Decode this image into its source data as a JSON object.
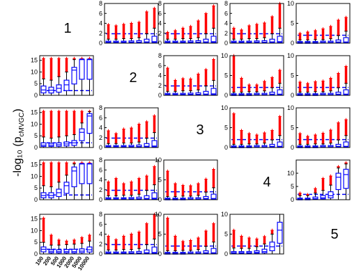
{
  "ylabel": "-log₁₀ (p",
  "ylabel_sub": "cMVGC",
  "ylabel_close": ")",
  "xtick_labels": [
    "100",
    "200",
    "500",
    "1000",
    "2000",
    "5000",
    "10000"
  ],
  "diag_labels": [
    "1",
    "2",
    "3",
    "4",
    "5"
  ],
  "colors": {
    "box": "#0000ff",
    "outlier": "#ff0000",
    "median": "#0000ff",
    "whisker": "#000000",
    "reference": "#0000ff",
    "axis": "#000000"
  },
  "chart_data": {
    "type": "box",
    "layout": "5x5 matrix of box-plot panels; diagonal holds variable numbers 1–5",
    "x_categories": [
      "100",
      "200",
      "500",
      "1000",
      "2000",
      "5000",
      "10000"
    ],
    "panels": [
      {
        "row": 1,
        "col": 2,
        "ylim": [
          0,
          8
        ],
        "yticks": [
          0,
          2,
          4,
          6,
          8
        ],
        "ref": 1.9,
        "medians": [
          0.2,
          0.2,
          0.2,
          0.2,
          0.2,
          0.25,
          0.3
        ],
        "q3": [
          0.4,
          0.4,
          0.4,
          0.45,
          0.5,
          0.8,
          1.4
        ],
        "whisk": [
          0.8,
          0.8,
          0.9,
          0.9,
          1.1,
          1.9,
          3.0
        ],
        "out_max": [
          3.7,
          3.5,
          3.8,
          4.0,
          4.2,
          6.3,
          7.0
        ]
      },
      {
        "row": 1,
        "col": 3,
        "ylim": [
          0,
          8
        ],
        "yticks": [
          0,
          2,
          4,
          6,
          8
        ],
        "ref": 1.9,
        "medians": [
          0.2,
          0.2,
          0.2,
          0.2,
          0.2,
          0.25,
          0.3
        ],
        "q3": [
          0.4,
          0.4,
          0.4,
          0.45,
          0.5,
          0.8,
          1.4
        ],
        "whisk": [
          0.8,
          0.8,
          0.9,
          0.9,
          1.1,
          1.9,
          3.0
        ],
        "out_max": [
          2.2,
          2.5,
          3.0,
          3.4,
          4.5,
          6.0,
          7.5
        ]
      },
      {
        "row": 1,
        "col": 4,
        "ylim": [
          0,
          8
        ],
        "yticks": [
          0,
          2,
          4,
          6,
          8
        ],
        "ref": 1.9,
        "medians": [
          0.2,
          0.2,
          0.2,
          0.2,
          0.2,
          0.25,
          0.3
        ],
        "q3": [
          0.4,
          0.4,
          0.4,
          0.45,
          0.5,
          0.8,
          1.4
        ],
        "whisk": [
          0.8,
          0.8,
          0.9,
          0.9,
          1.1,
          1.9,
          3.0
        ],
        "out_max": [
          3.0,
          2.7,
          3.5,
          3.8,
          4.1,
          5.3,
          8.2
        ]
      },
      {
        "row": 1,
        "col": 5,
        "ylim": [
          0,
          10
        ],
        "yticks": [
          0,
          5,
          10
        ],
        "ref": 2.0,
        "medians": [
          0.2,
          0.2,
          0.2,
          0.2,
          0.2,
          0.3,
          0.3
        ],
        "q3": [
          0.4,
          0.4,
          0.4,
          0.5,
          0.5,
          0.8,
          1.4
        ],
        "whisk": [
          0.8,
          0.8,
          0.9,
          0.9,
          1.1,
          1.9,
          3.0
        ],
        "out_max": [
          2.5,
          2.8,
          3.2,
          3.6,
          4.2,
          5.8,
          6.5
        ]
      },
      {
        "row": 2,
        "col": 1,
        "ylim": [
          0,
          17
        ],
        "yticks": [
          0,
          5,
          10,
          15
        ],
        "ref": 2.0,
        "medians": [
          2.3,
          2.2,
          3.0,
          4.5,
          10.8,
          15.3,
          15.3
        ],
        "q3": [
          4.0,
          3.5,
          4.5,
          6.5,
          12.0,
          15.5,
          15.5
        ],
        "whisk": [
          7.0,
          6.5,
          8.0,
          10.0,
          15.3,
          15.5,
          15.5
        ],
        "out_max": [
          15.8,
          15.8,
          15.8,
          15.8,
          15.8,
          15.8,
          15.8
        ]
      },
      {
        "row": 2,
        "col": 3,
        "ylim": [
          0,
          8
        ],
        "yticks": [
          0,
          2,
          4,
          6,
          8
        ],
        "ref": 1.9,
        "medians": [
          0.2,
          0.2,
          0.2,
          0.2,
          0.2,
          0.25,
          0.3
        ],
        "q3": [
          0.4,
          0.4,
          0.4,
          0.45,
          0.5,
          0.8,
          1.4
        ],
        "whisk": [
          0.8,
          0.8,
          0.9,
          0.9,
          1.1,
          1.9,
          3.0
        ],
        "out_max": [
          5.5,
          3.0,
          3.4,
          3.3,
          4.3,
          5.2,
          7.2
        ]
      },
      {
        "row": 2,
        "col": 4,
        "ylim": [
          0,
          10
        ],
        "yticks": [
          0,
          5,
          10
        ],
        "ref": 2.0,
        "medians": [
          0.2,
          0.2,
          0.2,
          0.2,
          0.2,
          0.3,
          0.3
        ],
        "q3": [
          0.4,
          0.4,
          0.4,
          0.5,
          0.5,
          0.8,
          1.4
        ],
        "whisk": [
          0.8,
          0.8,
          0.9,
          0.9,
          1.1,
          1.9,
          3.0
        ],
        "out_max": [
          10.5,
          4.3,
          2.6,
          2.6,
          3.5,
          4.5,
          6.3
        ]
      },
      {
        "row": 2,
        "col": 5,
        "ylim": [
          0,
          10
        ],
        "yticks": [
          0,
          5,
          10
        ],
        "ref": 2.0,
        "medians": [
          0.2,
          0.2,
          0.2,
          0.2,
          0.2,
          0.3,
          0.3
        ],
        "q3": [
          0.4,
          0.4,
          0.4,
          0.5,
          0.5,
          0.8,
          1.4
        ],
        "whisk": [
          0.8,
          0.8,
          0.9,
          0.9,
          1.1,
          1.9,
          3.0
        ],
        "out_max": [
          3.3,
          3.0,
          3.4,
          3.6,
          4.3,
          5.5,
          7.3
        ]
      },
      {
        "row": 3,
        "col": 1,
        "ylim": [
          0,
          17
        ],
        "yticks": [
          0,
          5,
          10,
          15
        ],
        "ref": 2.0,
        "medians": [
          1.0,
          1.0,
          1.2,
          1.5,
          2.0,
          6.5,
          13.5
        ],
        "q3": [
          2.0,
          1.8,
          2.0,
          2.4,
          3.0,
          8.0,
          14.5
        ],
        "whisk": [
          4.5,
          4.0,
          4.5,
          5.0,
          5.5,
          10.5,
          15.3
        ],
        "out_max": [
          15.5,
          15.5,
          15.5,
          15.5,
          15.5,
          15.5,
          15.5
        ]
      },
      {
        "row": 3,
        "col": 2,
        "ylim": [
          0,
          8
        ],
        "yticks": [
          0,
          2,
          4,
          6,
          8
        ],
        "ref": 1.9,
        "medians": [
          0.2,
          0.2,
          0.2,
          0.2,
          0.2,
          0.25,
          0.3
        ],
        "q3": [
          0.4,
          0.4,
          0.4,
          0.45,
          0.5,
          0.8,
          1.4
        ],
        "whisk": [
          0.8,
          0.8,
          0.9,
          0.9,
          1.1,
          1.9,
          3.0
        ],
        "out_max": [
          3.4,
          2.8,
          3.7,
          3.9,
          4.7,
          5.2,
          6.4
        ]
      },
      {
        "row": 3,
        "col": 4,
        "ylim": [
          0,
          10
        ],
        "yticks": [
          0,
          5,
          10
        ],
        "ref": 2.0,
        "medians": [
          0.2,
          0.2,
          0.2,
          0.2,
          0.2,
          0.3,
          0.3
        ],
        "q3": [
          0.4,
          0.4,
          0.4,
          0.5,
          0.5,
          0.8,
          1.4
        ],
        "whisk": [
          0.8,
          0.8,
          0.9,
          0.9,
          1.1,
          1.9,
          3.0
        ],
        "out_max": [
          8.5,
          4.3,
          3.5,
          3.2,
          3.7,
          4.3,
          7.8
        ]
      },
      {
        "row": 3,
        "col": 5,
        "ylim": [
          0,
          10
        ],
        "yticks": [
          0,
          5,
          10
        ],
        "ref": 2.0,
        "medians": [
          0.2,
          0.2,
          0.2,
          0.2,
          0.2,
          0.3,
          0.3
        ],
        "q3": [
          0.4,
          0.4,
          0.4,
          0.5,
          0.5,
          0.8,
          1.4
        ],
        "whisk": [
          0.8,
          0.8,
          0.9,
          0.9,
          1.1,
          1.9,
          3.0
        ],
        "out_max": [
          3.5,
          2.8,
          3.2,
          3.6,
          4.4,
          6.2,
          7.0
        ]
      },
      {
        "row": 4,
        "col": 1,
        "ylim": [
          0,
          17
        ],
        "yticks": [
          0,
          5,
          10,
          15
        ],
        "ref": 2.0,
        "medians": [
          1.8,
          1.8,
          3.0,
          6.0,
          12.3,
          15.3,
          15.3
        ],
        "q3": [
          3.0,
          3.0,
          4.5,
          7.5,
          14.0,
          15.5,
          15.5
        ],
        "whisk": [
          6.0,
          5.5,
          7.5,
          10.5,
          15.3,
          15.5,
          15.5
        ],
        "out_max": [
          15.8,
          15.8,
          15.8,
          15.8,
          15.8,
          15.8,
          15.8
        ]
      },
      {
        "row": 4,
        "col": 2,
        "ylim": [
          0,
          8
        ],
        "yticks": [
          0,
          2,
          4,
          6,
          8
        ],
        "ref": 1.9,
        "medians": [
          0.2,
          0.2,
          0.2,
          0.2,
          0.2,
          0.25,
          0.3
        ],
        "q3": [
          0.4,
          0.4,
          0.4,
          0.45,
          0.5,
          0.8,
          1.4
        ],
        "whisk": [
          0.8,
          0.8,
          0.9,
          0.9,
          1.1,
          1.9,
          3.0
        ],
        "out_max": [
          3.6,
          4.3,
          3.2,
          3.6,
          4.3,
          4.8,
          6.7
        ]
      },
      {
        "row": 4,
        "col": 3,
        "ylim": [
          0,
          10
        ],
        "yticks": [
          0,
          5,
          10
        ],
        "ref": 2.0,
        "medians": [
          0.2,
          0.2,
          0.2,
          0.2,
          0.2,
          0.3,
          0.3
        ],
        "q3": [
          0.4,
          0.4,
          0.4,
          0.5,
          0.5,
          0.8,
          1.4
        ],
        "whisk": [
          0.8,
          0.8,
          0.9,
          0.9,
          1.1,
          1.9,
          3.0
        ],
        "out_max": [
          7.2,
          4.0,
          3.6,
          3.5,
          4.0,
          5.2,
          7.6
        ]
      },
      {
        "row": 4,
        "col": 5,
        "ylim": [
          0,
          15
        ],
        "yticks": [
          0,
          5,
          10
        ],
        "ref": 2.0,
        "medians": [
          0.3,
          0.3,
          0.4,
          0.7,
          1.5,
          8.5,
          9.5
        ],
        "q3": [
          0.6,
          0.6,
          1.0,
          1.6,
          3.0,
          10.0,
          11.5
        ],
        "whisk": [
          1.5,
          1.5,
          2.5,
          3.5,
          5.5,
          12.0,
          13.5
        ],
        "out_max": [
          2.5,
          2.0,
          4.2,
          8.0,
          9.0,
          12.5,
          14.0
        ]
      },
      {
        "row": 5,
        "col": 1,
        "ylim": [
          0,
          17
        ],
        "yticks": [
          0,
          5,
          10,
          15
        ],
        "ref": 2.0,
        "medians": [
          2.0,
          1.0,
          1.0,
          1.0,
          1.0,
          1.2,
          1.8
        ],
        "q3": [
          3.0,
          1.8,
          1.8,
          1.9,
          2.0,
          2.2,
          3.0
        ],
        "whisk": [
          5.0,
          3.8,
          3.8,
          4.0,
          4.2,
          4.5,
          5.5
        ],
        "out_max": [
          15.3,
          8.0,
          6.0,
          5.5,
          6.0,
          7.0,
          8.0
        ]
      },
      {
        "row": 5,
        "col": 2,
        "ylim": [
          0,
          8
        ],
        "yticks": [
          0,
          2,
          4,
          6,
          8
        ],
        "ref": 1.9,
        "medians": [
          0.2,
          0.2,
          0.2,
          0.2,
          0.2,
          0.25,
          0.3
        ],
        "q3": [
          0.4,
          0.4,
          0.4,
          0.45,
          0.5,
          0.8,
          1.4
        ],
        "whisk": [
          0.8,
          0.8,
          0.9,
          0.9,
          1.1,
          1.9,
          3.0
        ],
        "out_max": [
          3.6,
          2.9,
          3.6,
          4.0,
          4.4,
          6.1,
          8.0
        ]
      },
      {
        "row": 5,
        "col": 3,
        "ylim": [
          0,
          10
        ],
        "yticks": [
          0,
          5,
          10
        ],
        "ref": 2.0,
        "medians": [
          0.2,
          0.2,
          0.2,
          0.2,
          0.2,
          0.3,
          0.3
        ],
        "q3": [
          0.4,
          0.4,
          0.4,
          0.5,
          0.5,
          0.8,
          1.4
        ],
        "whisk": [
          0.8,
          0.8,
          0.9,
          0.9,
          1.1,
          1.9,
          3.0
        ],
        "out_max": [
          9.0,
          4.5,
          3.2,
          3.4,
          4.0,
          5.8,
          7.6
        ]
      },
      {
        "row": 5,
        "col": 4,
        "ylim": [
          0,
          10
        ],
        "yticks": [
          0,
          5,
          10
        ],
        "ref": 2.0,
        "medians": [
          0.3,
          0.3,
          0.3,
          0.4,
          0.6,
          1.8,
          6.0
        ],
        "q3": [
          0.6,
          0.6,
          0.6,
          0.8,
          1.2,
          3.0,
          8.0
        ],
        "whisk": [
          1.5,
          1.4,
          1.4,
          1.8,
          2.5,
          5.0,
          10.0
        ],
        "out_max": [
          6.0,
          4.5,
          4.0,
          3.8,
          4.4,
          6.0,
          8.0
        ]
      }
    ]
  }
}
